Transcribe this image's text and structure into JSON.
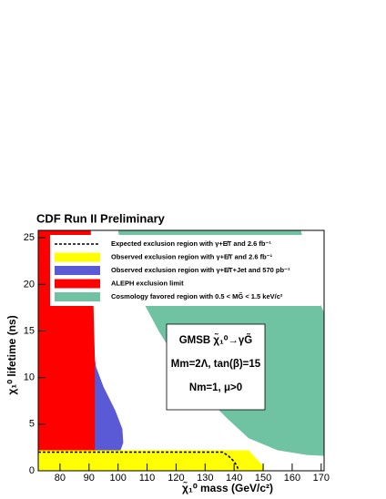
{
  "chart_data": {
    "type": "contour",
    "title": "CDF Run II Preliminary",
    "x_label": "χ̃₁⁰ mass (GeV/c²)",
    "y_label": "χ₁⁰ lifetime (ns)",
    "xlim": [
      72.5,
      171
    ],
    "xticks": [
      80,
      90,
      100,
      110,
      120,
      130,
      140,
      150,
      160,
      170
    ],
    "ylim": [
      0,
      25.8
    ],
    "yticks": [
      0,
      5,
      10,
      15,
      20,
      25
    ],
    "annotation": [
      "GMSB χ̃₁⁰→γG̃",
      "Mm=2Λ, tan(β)=15",
      "Nm=1, μ>0"
    ],
    "series": [
      {
        "name": "Expected exclusion region with γ+E̸T and 2.6 fb⁻¹",
        "color": "#000000",
        "style": "dashed",
        "x": [
          72.5,
          136,
          138,
          140,
          141,
          141.5
        ],
        "y": [
          2,
          2,
          1.6,
          1,
          0.5,
          0
        ]
      },
      {
        "name": "Observed exclusion region with γ+E̸T and 2.6 fb⁻¹",
        "color": "#ffff00",
        "style": "fill",
        "x": [
          72.5,
          72.5,
          145,
          150,
          150
        ],
        "y": [
          0,
          2.2,
          2.2,
          0.5,
          0
        ]
      },
      {
        "name": "Observed exclusion region with γ+E̸T+Jet and 570 pb⁻¹",
        "color": "#5a5ad6",
        "style": "fill",
        "x": [
          92,
          95,
          99,
          101.5,
          101.8,
          100,
          97,
          92
        ],
        "y": [
          11.5,
          9,
          6.5,
          4.5,
          3,
          1.5,
          0.5,
          0
        ]
      },
      {
        "name": "ALEPH exclusion limit",
        "color": "#ff0000",
        "style": "fill",
        "x": [
          72.5,
          72.5,
          90.6,
          91.5,
          92,
          95,
          98,
          98
        ],
        "y": [
          0,
          25.8,
          25.8,
          18,
          12,
          5,
          1.5,
          0
        ]
      },
      {
        "name": "Cosmology favored region with 0.5 < MG̃ < 1.5 keV/c²",
        "color": "#6fc3a2",
        "style": "fill",
        "x": [
          100,
          163,
          166,
          168,
          171,
          171,
          165,
          155,
          145,
          138,
          130,
          122,
          114,
          108,
          104.5,
          101
        ],
        "y": [
          25.8,
          25.8,
          22,
          19,
          17,
          1.6,
          1.7,
          2.2,
          3.5,
          5.5,
          8,
          11,
          15,
          18.5,
          21,
          24
        ]
      }
    ]
  }
}
